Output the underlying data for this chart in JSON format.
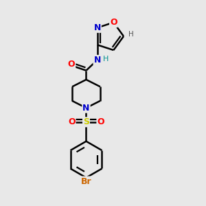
{
  "bg_color": "#e8e8e8",
  "atom_colors": {
    "C": "#000000",
    "N": "#0000cc",
    "O": "#ff0000",
    "S": "#cccc00",
    "Br": "#cc6600",
    "H": "#009090"
  },
  "bond_color": "#000000",
  "bond_width": 1.8,
  "fig_width": 3.0,
  "fig_height": 3.0,
  "dpi": 100
}
